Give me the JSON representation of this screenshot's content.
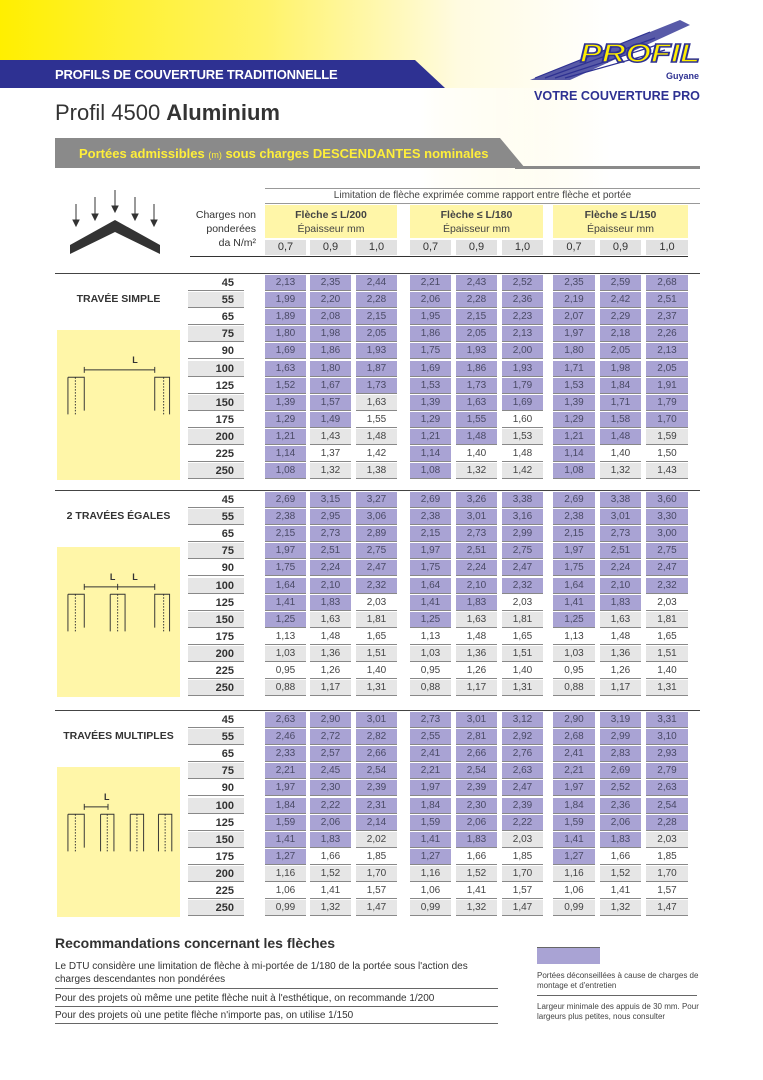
{
  "header": {
    "band": "PROFILS DE COUVERTURE TRADITIONNELLE",
    "title_light": "Profil 4500 ",
    "title_bold": "Aluminium",
    "logo": {
      "brand": "PROFIL",
      "region": "Guyane",
      "tagline": "VOTRE COUVERTURE PRO"
    }
  },
  "banner": {
    "part1": "Portées admissibles ",
    "unit": "(m)",
    "part2": " sous charges ",
    "bold": "DESCENDANTES",
    "part3": " nominales"
  },
  "table_header": {
    "limitation": "Limitation de flèche exprimée comme rapport entre flèche et portée",
    "charges_label": [
      "Charges non",
      "ponderées",
      "da N/m²"
    ],
    "groups": [
      {
        "label": "Flèche ≤ L/200",
        "sub": "Épaisseur mm"
      },
      {
        "label": "Flèche ≤ L/180",
        "sub": "Épaisseur mm"
      },
      {
        "label": "Flèche ≤ L/150",
        "sub": "Épaisseur mm"
      }
    ],
    "thicknesses": [
      "0,7",
      "0,9",
      "1,0"
    ]
  },
  "loads": [
    "45",
    "55",
    "65",
    "75",
    "90",
    "100",
    "125",
    "150",
    "175",
    "200",
    "225",
    "250"
  ],
  "sections": [
    {
      "name": "TRAVÉE SIMPLE",
      "span_label": "L",
      "shaded_rows_per_column": [
        12,
        9,
        7,
        12,
        10,
        8,
        12,
        10,
        9
      ],
      "rows": [
        [
          "2,13",
          "2,35",
          "2,44",
          "2,21",
          "2,43",
          "2,52",
          "2,35",
          "2,59",
          "2,68"
        ],
        [
          "1,99",
          "2,20",
          "2,28",
          "2,06",
          "2,28",
          "2,36",
          "2,19",
          "2,42",
          "2,51"
        ],
        [
          "1,89",
          "2,08",
          "2,15",
          "1,95",
          "2,15",
          "2,23",
          "2,07",
          "2,29",
          "2,37"
        ],
        [
          "1,80",
          "1,98",
          "2,05",
          "1,86",
          "2,05",
          "2,13",
          "1,97",
          "2,18",
          "2,26"
        ],
        [
          "1,69",
          "1,86",
          "1,93",
          "1,75",
          "1,93",
          "2,00",
          "1,80",
          "2,05",
          "2,13"
        ],
        [
          "1,63",
          "1,80",
          "1,87",
          "1,69",
          "1,86",
          "1,93",
          "1,71",
          "1,98",
          "2,05"
        ],
        [
          "1,52",
          "1,67",
          "1,73",
          "1,53",
          "1,73",
          "1,79",
          "1,53",
          "1,84",
          "1,91"
        ],
        [
          "1,39",
          "1,57",
          "1,63",
          "1,39",
          "1,63",
          "1,69",
          "1,39",
          "1,71",
          "1,79"
        ],
        [
          "1,29",
          "1,49",
          "1,55",
          "1,29",
          "1,55",
          "1,60",
          "1,29",
          "1,58",
          "1,70"
        ],
        [
          "1,21",
          "1,43",
          "1,48",
          "1,21",
          "1,48",
          "1,53",
          "1,21",
          "1,48",
          "1,59"
        ],
        [
          "1,14",
          "1,37",
          "1,42",
          "1,14",
          "1,40",
          "1,48",
          "1,14",
          "1,40",
          "1,50"
        ],
        [
          "1,08",
          "1,32",
          "1,38",
          "1,08",
          "1,32",
          "1,42",
          "1,08",
          "1,32",
          "1,43"
        ]
      ]
    },
    {
      "name": "2 TRAVÉES ÉGALES",
      "span_label": "L",
      "shaded_rows_per_column": [
        8,
        7,
        6,
        8,
        7,
        6,
        8,
        7,
        6
      ],
      "rows": [
        [
          "2,69",
          "3,15",
          "3,27",
          "2,69",
          "3,26",
          "3,38",
          "2,69",
          "3,38",
          "3,60"
        ],
        [
          "2,38",
          "2,95",
          "3,06",
          "2,38",
          "3,01",
          "3,16",
          "2,38",
          "3,01",
          "3,30"
        ],
        [
          "2,15",
          "2,73",
          "2,89",
          "2,15",
          "2,73",
          "2,99",
          "2,15",
          "2,73",
          "3,00"
        ],
        [
          "1,97",
          "2,51",
          "2,75",
          "1,97",
          "2,51",
          "2,75",
          "1,97",
          "2,51",
          "2,75"
        ],
        [
          "1,75",
          "2,24",
          "2,47",
          "1,75",
          "2,24",
          "2,47",
          "1,75",
          "2,24",
          "2,47"
        ],
        [
          "1,64",
          "2,10",
          "2,32",
          "1,64",
          "2,10",
          "2,32",
          "1,64",
          "2,10",
          "2,32"
        ],
        [
          "1,41",
          "1,83",
          "2,03",
          "1,41",
          "1,83",
          "2,03",
          "1,41",
          "1,83",
          "2,03"
        ],
        [
          "1,25",
          "1,63",
          "1,81",
          "1,25",
          "1,63",
          "1,81",
          "1,25",
          "1,63",
          "1,81"
        ],
        [
          "1,13",
          "1,48",
          "1,65",
          "1,13",
          "1,48",
          "1,65",
          "1,13",
          "1,48",
          "1,65"
        ],
        [
          "1,03",
          "1,36",
          "1,51",
          "1,03",
          "1,36",
          "1,51",
          "1,03",
          "1,36",
          "1,51"
        ],
        [
          "0,95",
          "1,26",
          "1,40",
          "0,95",
          "1,26",
          "1,40",
          "0,95",
          "1,26",
          "1,40"
        ],
        [
          "0,88",
          "1,17",
          "1,31",
          "0,88",
          "1,17",
          "1,31",
          "0,88",
          "1,17",
          "1,31"
        ]
      ]
    },
    {
      "name": "TRAVÉES MULTIPLES",
      "span_label": "L",
      "shaded_rows_per_column": [
        9,
        8,
        7,
        9,
        8,
        7,
        9,
        8,
        7
      ],
      "rows": [
        [
          "2,63",
          "2,90",
          "3,01",
          "2,73",
          "3,01",
          "3,12",
          "2,90",
          "3,19",
          "3,31"
        ],
        [
          "2,46",
          "2,72",
          "2,82",
          "2,55",
          "2,81",
          "2,92",
          "2,68",
          "2,99",
          "3,10"
        ],
        [
          "2,33",
          "2,57",
          "2,66",
          "2,41",
          "2,66",
          "2,76",
          "2,41",
          "2,83",
          "2,93"
        ],
        [
          "2,21",
          "2,45",
          "2,54",
          "2,21",
          "2,54",
          "2,63",
          "2,21",
          "2,69",
          "2,79"
        ],
        [
          "1,97",
          "2,30",
          "2,39",
          "1,97",
          "2,39",
          "2,47",
          "1,97",
          "2,52",
          "2,63"
        ],
        [
          "1,84",
          "2,22",
          "2,31",
          "1,84",
          "2,30",
          "2,39",
          "1,84",
          "2,36",
          "2,54"
        ],
        [
          "1,59",
          "2,06",
          "2,14",
          "1,59",
          "2,06",
          "2,22",
          "1,59",
          "2,06",
          "2,28"
        ],
        [
          "1,41",
          "1,83",
          "2,02",
          "1,41",
          "1,83",
          "2,03",
          "1,41",
          "1,83",
          "2,03"
        ],
        [
          "1,27",
          "1,66",
          "1,85",
          "1,27",
          "1,66",
          "1,85",
          "1,27",
          "1,66",
          "1,85"
        ],
        [
          "1,16",
          "1,52",
          "1,70",
          "1,16",
          "1,52",
          "1,70",
          "1,16",
          "1,52",
          "1,70"
        ],
        [
          "1,06",
          "1,41",
          "1,57",
          "1,06",
          "1,41",
          "1,57",
          "1,06",
          "1,41",
          "1,57"
        ],
        [
          "0,99",
          "1,32",
          "1,47",
          "0,99",
          "1,32",
          "1,47",
          "0,99",
          "1,32",
          "1,47"
        ]
      ]
    }
  ],
  "recommendations": {
    "title": "Recommandations concernant les flèches",
    "items": [
      "Le DTU considère une limitation de flèche à mi-portée de 1/180 de la portée sous l'action des charges descendantes non pondérées",
      "Pour des projets où même une petite flèche nuit à l'esthétique, on recommande 1/200",
      "Pour des projets où une petite flèche n'importe pas, on utilise 1/150"
    ]
  },
  "legend": {
    "shaded_text": "Portées déconseillées à cause de charges de montage et d'entretien",
    "note": "Largeur minimale des appuis de 30 mm. Pour largeurs plus petites, nous consulter"
  },
  "colors": {
    "blue": "#2e3192",
    "yellow": "#ffef00",
    "shaded": "#a9a3d4"
  }
}
